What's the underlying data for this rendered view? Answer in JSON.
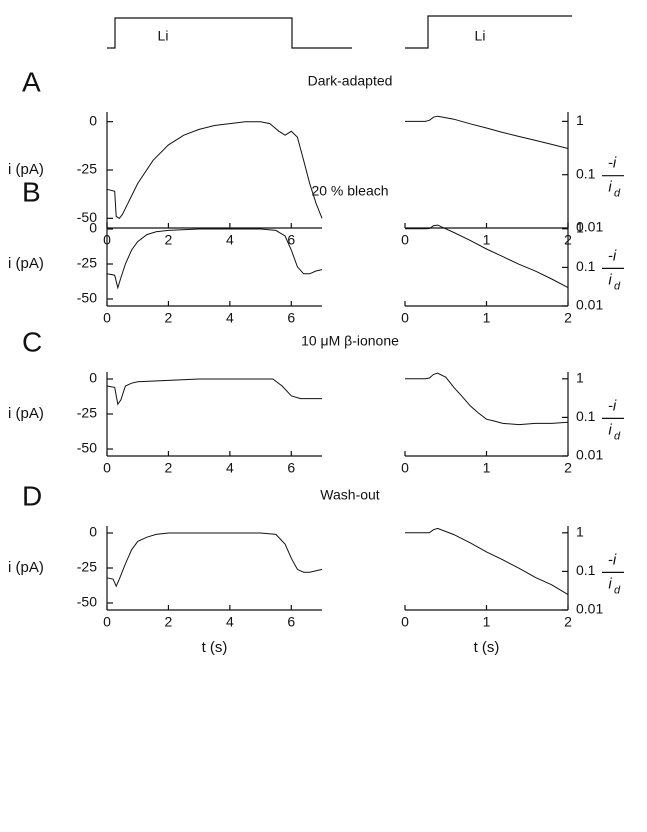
{
  "stimulus": [
    "Li",
    "Li"
  ],
  "chart_data": [
    {
      "type": "line",
      "panel": "A",
      "title": "Dark-adapted",
      "ylabel": "i (pA)",
      "x": [
        0,
        0.25,
        0.3,
        0.4,
        0.5,
        0.75,
        1,
        1.5,
        2,
        2.5,
        3,
        3.5,
        4,
        4.5,
        5,
        5.3,
        5.6,
        5.8,
        6,
        6.2,
        6.4,
        6.6,
        6.8,
        7
      ],
      "values": [
        -35,
        -36,
        -49,
        -50,
        -48,
        -40,
        -32,
        -20,
        -12,
        -7,
        -4,
        -2,
        -1,
        0,
        0,
        -1,
        -5,
        -7,
        -5,
        -8,
        -20,
        -32,
        -42,
        -50
      ],
      "xlim": [
        0,
        7
      ],
      "xticks": [
        0,
        2,
        4,
        6
      ],
      "ylim": [
        -55,
        5
      ],
      "yticks": [
        0,
        -25,
        -50
      ]
    },
    {
      "type": "line",
      "log_scale": true,
      "ylabel_numerator": "-i",
      "ylabel_denominator": "i",
      "ylabel_subscript": "d",
      "x": [
        0,
        0.25,
        0.3,
        0.35,
        0.4,
        0.6,
        0.8,
        1,
        1.2,
        1.4,
        1.6,
        1.8,
        2
      ],
      "values": [
        1,
        1,
        1.05,
        1.2,
        1.25,
        1.1,
        0.9,
        0.75,
        0.62,
        0.52,
        0.44,
        0.37,
        0.31
      ],
      "xlim": [
        0,
        2
      ],
      "xticks": [
        0,
        1,
        2
      ],
      "ylim": [
        0.01,
        1.5
      ],
      "yticks": [
        1,
        0.1,
        0.01
      ]
    },
    {
      "type": "line",
      "panel": "B",
      "title": "20 % bleach",
      "ylabel": "i (pA)",
      "x": [
        0,
        0.25,
        0.35,
        0.45,
        0.6,
        0.8,
        1,
        1.3,
        1.6,
        2,
        3,
        4,
        5,
        5.5,
        5.8,
        6,
        6.2,
        6.4,
        6.6,
        6.8,
        7
      ],
      "values": [
        -32,
        -33,
        -42,
        -35,
        -25,
        -15,
        -9,
        -4,
        -2,
        -1,
        0,
        0,
        0,
        -1,
        -5,
        -15,
        -27,
        -32,
        -32,
        -30,
        -29
      ],
      "xlim": [
        0,
        7
      ],
      "xticks": [
        0,
        2,
        4,
        6
      ],
      "ylim": [
        -55,
        5
      ],
      "yticks": [
        0,
        -25,
        -50
      ]
    },
    {
      "type": "line",
      "log_scale": true,
      "ylabel_numerator": "-i",
      "ylabel_denominator": "i",
      "ylabel_subscript": "d",
      "x": [
        0,
        0.25,
        0.3,
        0.35,
        0.4,
        0.6,
        0.8,
        1,
        1.2,
        1.4,
        1.6,
        1.8,
        2
      ],
      "values": [
        1,
        1,
        1.02,
        1.2,
        1.25,
        0.8,
        0.5,
        0.3,
        0.19,
        0.12,
        0.08,
        0.05,
        0.03
      ],
      "xlim": [
        0,
        2
      ],
      "xticks": [
        0,
        1,
        2
      ],
      "ylim": [
        0.01,
        1.5
      ],
      "yticks": [
        1,
        0.1,
        0.01
      ]
    },
    {
      "type": "line",
      "panel": "C",
      "title": "10 μM β-ionone",
      "ylabel": "i (pA)",
      "x": [
        0,
        0.25,
        0.35,
        0.45,
        0.6,
        0.8,
        1,
        2,
        3,
        4,
        5,
        5.4,
        5.7,
        6,
        6.3,
        7
      ],
      "values": [
        -5,
        -6,
        -18,
        -15,
        -5,
        -3,
        -2,
        -1,
        0,
        0,
        0,
        0,
        -5,
        -12,
        -14,
        -14
      ],
      "xlim": [
        0,
        7
      ],
      "xticks": [
        0,
        2,
        4,
        6
      ],
      "ylim": [
        -55,
        5
      ],
      "yticks": [
        0,
        -25,
        -50
      ]
    },
    {
      "type": "line",
      "log_scale": true,
      "ylabel_numerator": "-i",
      "ylabel_denominator": "i",
      "ylabel_subscript": "d",
      "x": [
        0,
        0.25,
        0.3,
        0.35,
        0.4,
        0.5,
        0.6,
        0.7,
        0.8,
        0.9,
        1,
        1.1,
        1.2,
        1.4,
        1.6,
        1.8,
        2
      ],
      "values": [
        1,
        1,
        1.05,
        1.3,
        1.4,
        1.1,
        0.6,
        0.35,
        0.2,
        0.13,
        0.09,
        0.08,
        0.07,
        0.065,
        0.07,
        0.07,
        0.075
      ],
      "xlim": [
        0,
        2
      ],
      "xticks": [
        0,
        1,
        2
      ],
      "ylim": [
        0.01,
        1.5
      ],
      "yticks": [
        1,
        0.1,
        0.01
      ]
    },
    {
      "type": "line",
      "panel": "D",
      "title": "Wash-out",
      "ylabel": "i (pA)",
      "xlabel": "t (s)",
      "x": [
        0,
        0.2,
        0.3,
        0.4,
        0.6,
        0.8,
        1,
        1.3,
        1.6,
        2,
        3,
        4,
        5,
        5.5,
        5.8,
        6,
        6.2,
        6.4,
        6.6,
        7
      ],
      "values": [
        -32,
        -33,
        -38,
        -33,
        -22,
        -12,
        -6,
        -3,
        -1,
        0,
        0,
        0,
        0,
        -1,
        -8,
        -18,
        -26,
        -28,
        -28,
        -26
      ],
      "xlim": [
        0,
        7
      ],
      "xticks": [
        0,
        2,
        4,
        6
      ],
      "ylim": [
        -55,
        5
      ],
      "yticks": [
        0,
        -25,
        -50
      ]
    },
    {
      "type": "line",
      "log_scale": true,
      "xlabel": "t (s)",
      "ylabel_numerator": "-i",
      "ylabel_denominator": "i",
      "ylabel_subscript": "d",
      "x": [
        0,
        0.25,
        0.3,
        0.35,
        0.4,
        0.6,
        0.8,
        1,
        1.2,
        1.4,
        1.6,
        1.8,
        2
      ],
      "values": [
        1,
        1,
        1,
        1.2,
        1.3,
        0.9,
        0.55,
        0.32,
        0.2,
        0.12,
        0.07,
        0.045,
        0.025
      ],
      "xlim": [
        0,
        2
      ],
      "xticks": [
        0,
        1,
        2
      ],
      "ylim": [
        0.01,
        1.5
      ],
      "yticks": [
        1,
        0.1,
        0.01
      ]
    }
  ]
}
